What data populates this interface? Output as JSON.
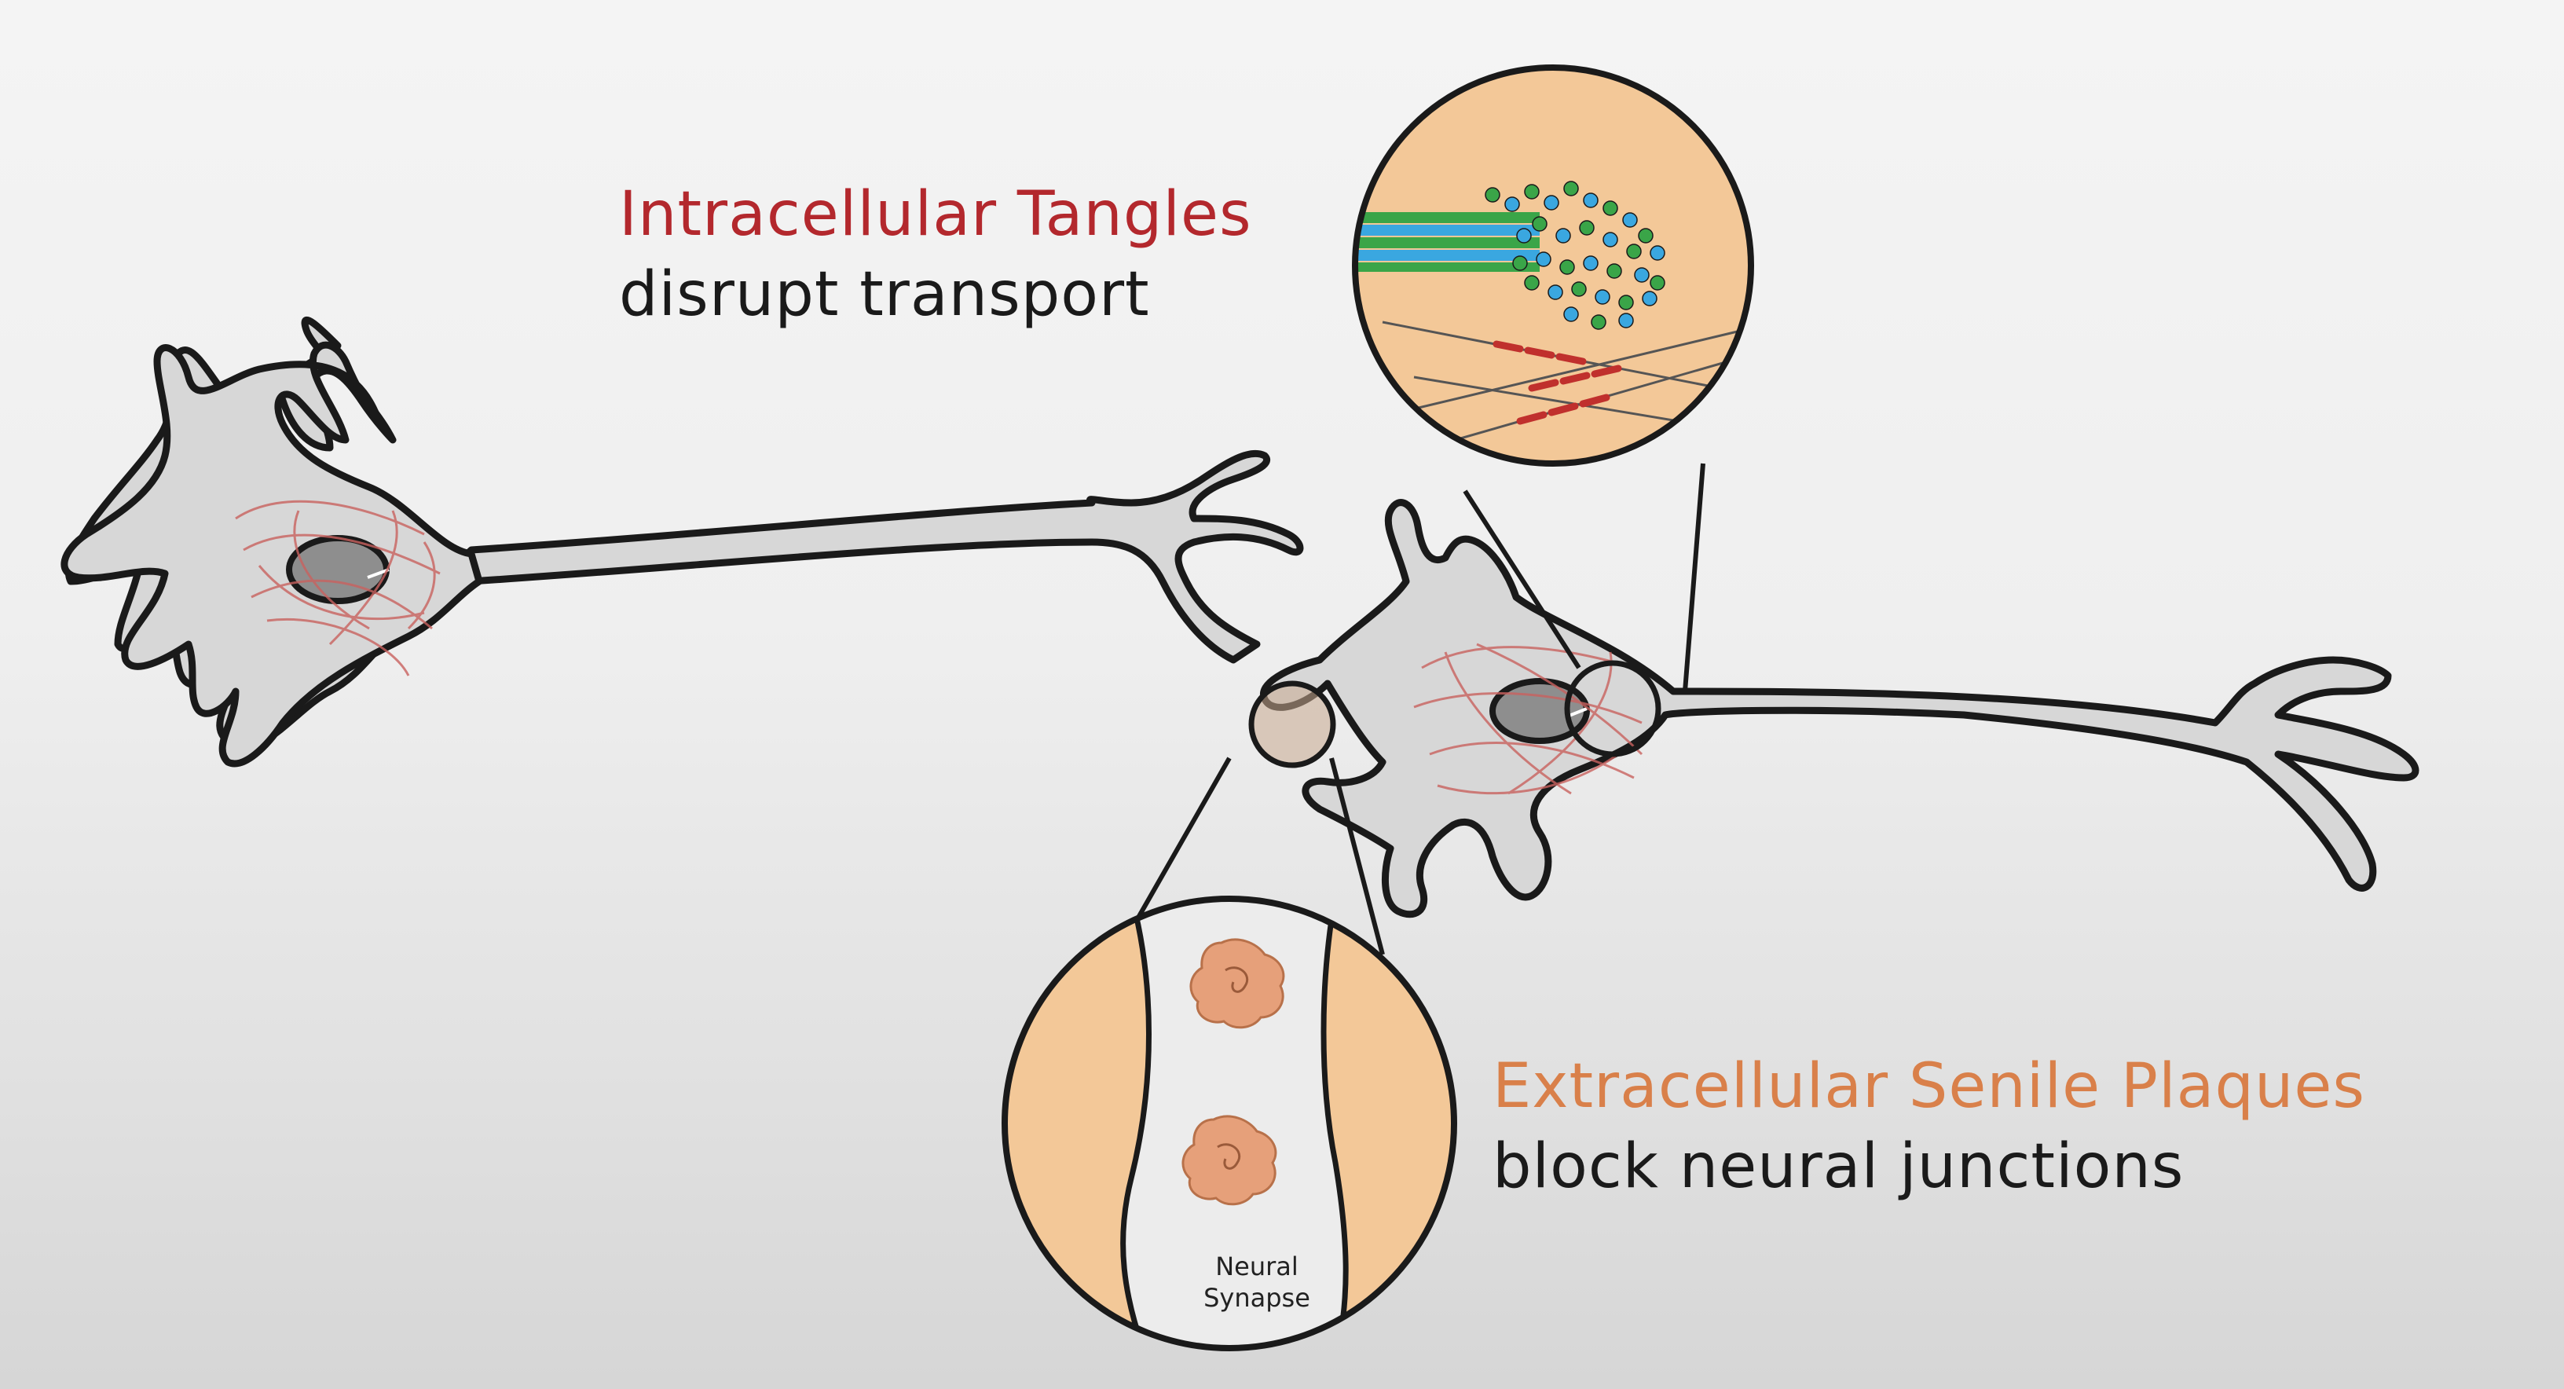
{
  "labels": {
    "tangles_title": "Intracellular Tangles",
    "tangles_subtitle": "disrupt transport",
    "plaques_title": "Extracellular Senile Plaques",
    "plaques_subtitle": "block neural junctions",
    "synapse_line1": "Neural",
    "synapse_line2": "Synapse"
  },
  "colors": {
    "neuron_fill": "#d7d7d7",
    "outline": "#1a1a1a",
    "nucleus": "#8e8e8e",
    "tangle_fibers": "#c9625f",
    "zoom_fill": "#f3c898",
    "tangles_title": "#b3282d",
    "plaques_title": "#d9804a",
    "plaque": "#e6a07a",
    "tau_blue": "#3aa7e0",
    "tau_green": "#3aa548"
  }
}
